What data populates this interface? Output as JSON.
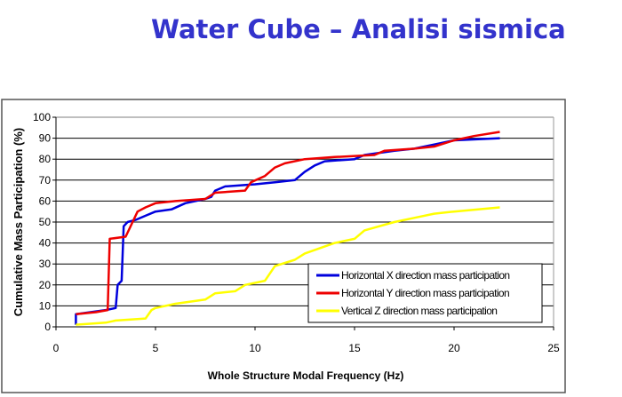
{
  "title": "Water Cube – Analisi sismica",
  "chart_data": {
    "type": "line",
    "xlabel": "Whole Structure Modal Frequency (Hz)",
    "ylabel": "Cumulative Mass Participation (%)",
    "xlim": [
      0,
      25
    ],
    "ylim": [
      0,
      100
    ],
    "xticks": [
      0,
      5,
      10,
      15,
      20,
      25
    ],
    "yticks": [
      0,
      10,
      20,
      30,
      40,
      50,
      60,
      70,
      80,
      90,
      100
    ],
    "grid": "horizontal",
    "legend": "bottom-right",
    "series": [
      {
        "name": "Horizontal X direction mass participation",
        "color": "#0000dd",
        "points": [
          [
            1,
            1
          ],
          [
            1,
            6
          ],
          [
            2.5,
            8
          ],
          [
            3,
            9
          ],
          [
            3.1,
            20
          ],
          [
            3.3,
            22
          ],
          [
            3.4,
            48
          ],
          [
            3.6,
            50
          ],
          [
            4,
            51
          ],
          [
            4.5,
            53
          ],
          [
            5,
            55
          ],
          [
            5.8,
            56
          ],
          [
            6.5,
            59
          ],
          [
            7.5,
            61
          ],
          [
            7.8,
            62
          ],
          [
            8,
            65
          ],
          [
            8.5,
            67
          ],
          [
            10,
            68
          ],
          [
            11,
            69
          ],
          [
            12,
            70
          ],
          [
            12.5,
            74
          ],
          [
            13,
            77
          ],
          [
            13.5,
            79
          ],
          [
            15,
            80
          ],
          [
            15.5,
            82
          ],
          [
            17,
            84
          ],
          [
            18,
            85
          ],
          [
            19,
            87
          ],
          [
            20,
            89
          ],
          [
            22.3,
            90
          ]
        ]
      },
      {
        "name": "Horizontal Y direction mass participation",
        "color": "#ee0000",
        "points": [
          [
            1,
            6
          ],
          [
            2,
            7
          ],
          [
            2.6,
            8
          ],
          [
            2.7,
            42
          ],
          [
            3.5,
            43
          ],
          [
            3.8,
            49
          ],
          [
            4.1,
            55
          ],
          [
            4.5,
            57
          ],
          [
            5,
            59
          ],
          [
            6,
            60
          ],
          [
            7.5,
            61
          ],
          [
            8,
            64
          ],
          [
            9.5,
            65
          ],
          [
            9.8,
            69
          ],
          [
            10.5,
            72
          ],
          [
            11,
            76
          ],
          [
            11.5,
            78
          ],
          [
            12.5,
            80
          ],
          [
            14,
            81
          ],
          [
            16,
            82
          ],
          [
            16.5,
            84
          ],
          [
            18,
            85
          ],
          [
            19,
            86
          ],
          [
            20,
            89
          ],
          [
            21,
            91
          ],
          [
            22.3,
            93
          ]
        ]
      },
      {
        "name": "Vertical Z direction mass participation",
        "color": "#ffff00",
        "points": [
          [
            1,
            1
          ],
          [
            2.5,
            2
          ],
          [
            3,
            3
          ],
          [
            4.5,
            4
          ],
          [
            4.8,
            8
          ],
          [
            5,
            9
          ],
          [
            6,
            11
          ],
          [
            7.5,
            13
          ],
          [
            8,
            16
          ],
          [
            9,
            17
          ],
          [
            9.5,
            20
          ],
          [
            10.5,
            22
          ],
          [
            11,
            29
          ],
          [
            12,
            32
          ],
          [
            12.5,
            35
          ],
          [
            14,
            40
          ],
          [
            15,
            42
          ],
          [
            15.5,
            46
          ],
          [
            17,
            50
          ],
          [
            18,
            52
          ],
          [
            19,
            54
          ],
          [
            20,
            55
          ],
          [
            22.3,
            57
          ]
        ]
      }
    ]
  }
}
